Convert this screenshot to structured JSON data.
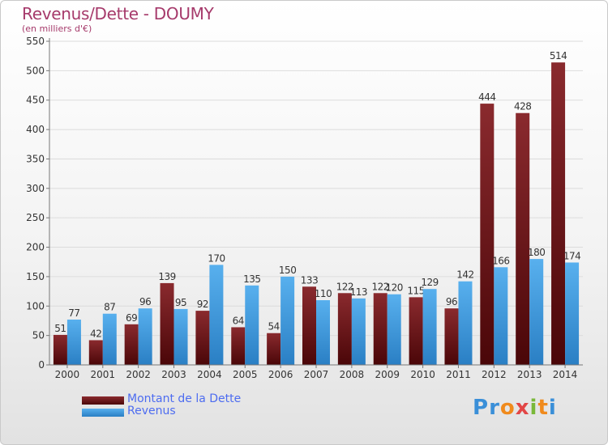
{
  "chart_data": {
    "type": "bar",
    "title": "Revenus/Dette - DOUMY",
    "subtitle": "(en milliers d'€)",
    "categories": [
      "2000",
      "2001",
      "2002",
      "2003",
      "2004",
      "2005",
      "2006",
      "2007",
      "2008",
      "2009",
      "2010",
      "2011",
      "2012",
      "2013",
      "2014"
    ],
    "series": [
      {
        "name": "Montant de la Dette",
        "color": "#6e1416",
        "values": [
          51,
          42,
          69,
          139,
          92,
          64,
          54,
          133,
          122,
          122,
          115,
          96,
          444,
          428,
          514
        ]
      },
      {
        "name": "Revenus",
        "color": "#3d9ae0",
        "values": [
          77,
          87,
          96,
          95,
          170,
          135,
          150,
          110,
          113,
          120,
          129,
          142,
          166,
          180,
          174
        ]
      }
    ],
    "ylim": [
      0,
      550
    ],
    "yticks": [
      0,
      50,
      100,
      150,
      200,
      250,
      300,
      350,
      400,
      450,
      500,
      550
    ],
    "grid": true,
    "legend_position": "bottom-left"
  },
  "logo": {
    "text": "Proxiti"
  }
}
